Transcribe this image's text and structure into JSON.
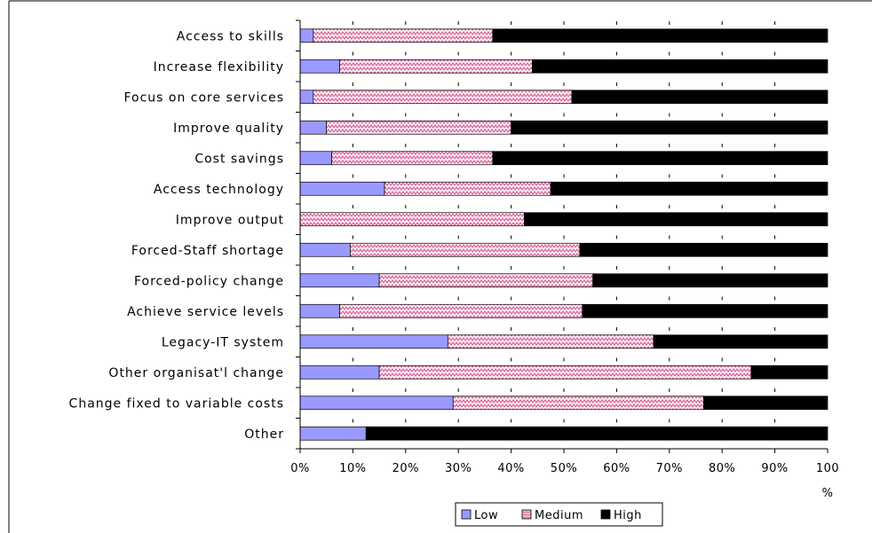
{
  "chart_data": {
    "type": "bar",
    "stacked": true,
    "orientation": "horizontal",
    "categories": [
      "Access to skills",
      "Increase flexibility",
      "Focus on core services",
      "Improve quality",
      "Cost savings",
      "Access technology",
      "Improve output",
      "Forced-Staff shortage",
      "Forced-policy change",
      "Achieve service levels",
      "Legacy-IT system",
      "Other organisat'l change",
      "Change fixed to variable costs",
      "Other"
    ],
    "series": [
      {
        "name": "Low",
        "color": "#9999ff",
        "values": [
          2.5,
          7.5,
          2.5,
          5,
          6,
          16,
          0,
          9.5,
          15,
          7.5,
          28,
          15,
          29,
          12.5
        ]
      },
      {
        "name": "Medium",
        "color": "#ffccff",
        "values": [
          34,
          36.5,
          49,
          35,
          30.5,
          31.5,
          42.5,
          43.5,
          40.5,
          46,
          39,
          70.5,
          47.5,
          0
        ]
      },
      {
        "name": "High",
        "color": "#000000",
        "values": [
          63.5,
          56,
          48.5,
          60,
          63.5,
          52.5,
          57.5,
          47,
          44.5,
          46.5,
          33,
          14.5,
          23.5,
          87.5
        ]
      }
    ],
    "xlim": [
      0,
      100
    ],
    "xticks": [
      "0%",
      "10%",
      "20%",
      "30%",
      "40%",
      "50%",
      "60%",
      "70%",
      "80%",
      "90%",
      "100"
    ],
    "xtick_suffix": "%",
    "legend_position": "bottom",
    "grid": "minor tick marks"
  }
}
